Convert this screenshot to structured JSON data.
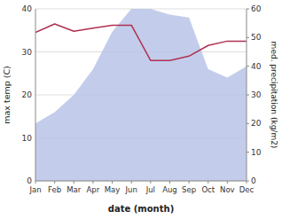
{
  "chart_data": {
    "type": "line",
    "xlabel": "date (month)",
    "ylabel": "max temp (C)",
    "y2label": "med. precipitation (kg/m2)",
    "categories": [
      "Jan",
      "Feb",
      "Mar",
      "Apr",
      "May",
      "Jun",
      "Jul",
      "Aug",
      "Sep",
      "Oct",
      "Nov",
      "Dec"
    ],
    "series": [
      {
        "type": "area",
        "axis": "y2",
        "color": "#b8c4e8",
        "values": [
          20,
          24,
          30,
          39,
          52,
          60,
          60,
          58,
          57,
          39,
          36,
          40
        ]
      },
      {
        "type": "line",
        "color": "#b03050",
        "values": [
          34.5,
          36.5,
          34.8,
          35.5,
          36.2,
          36.2,
          28.0,
          28.0,
          29.0,
          31.5,
          32.5,
          32.5
        ]
      }
    ],
    "ylim": [
      0,
      40
    ],
    "yticks": [
      0,
      10,
      20,
      30,
      40
    ],
    "y2lim": [
      0,
      60
    ],
    "y2ticks": [
      0,
      10,
      20,
      30,
      40,
      50,
      60
    ],
    "grid": true
  }
}
